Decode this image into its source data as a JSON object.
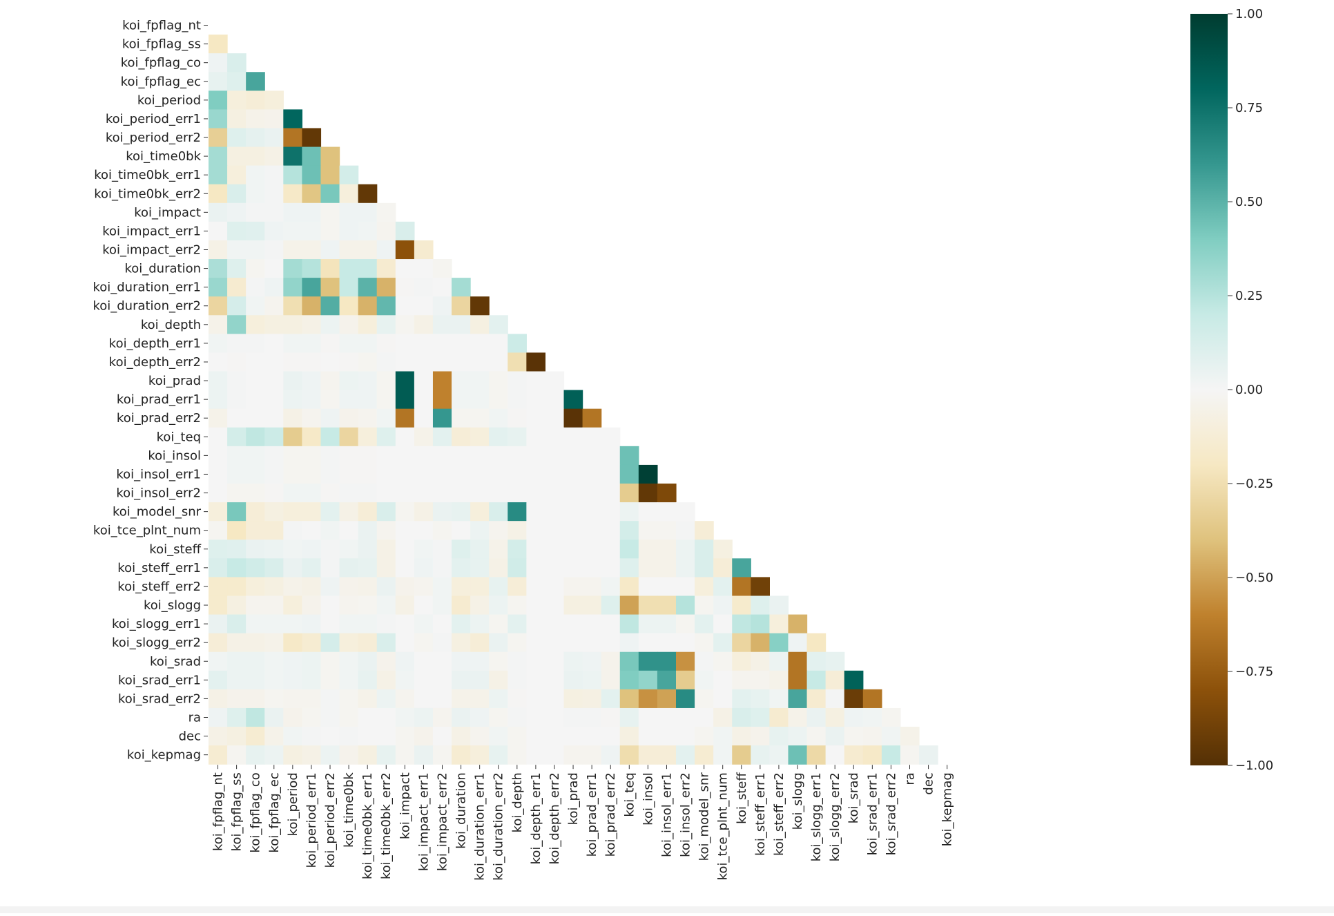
{
  "chart_data": {
    "type": "heatmap",
    "title": "",
    "xlabel": "",
    "ylabel": "",
    "mask": "upper-triangle-including-diagonal",
    "colormap": "BrBG",
    "colormap_stops": [
      "#543005",
      "#8c510a",
      "#bf812d",
      "#dfc27d",
      "#f6e8c3",
      "#f5f5f5",
      "#c7eae5",
      "#80cdc1",
      "#35978f",
      "#01665e",
      "#003c30"
    ],
    "vmin": -1.0,
    "vmax": 1.0,
    "colorbar_ticks": [
      1.0,
      0.75,
      0.5,
      0.25,
      0.0,
      -0.25,
      -0.5,
      -0.75,
      -1.0
    ],
    "colorbar_tick_labels": [
      "1.00",
      "0.75",
      "0.50",
      "0.25",
      "0.00",
      "−0.25",
      "−0.50",
      "−0.75",
      "−1.00"
    ],
    "variables": [
      "koi_fpflag_nt",
      "koi_fpflag_ss",
      "koi_fpflag_co",
      "koi_fpflag_ec",
      "koi_period",
      "koi_period_err1",
      "koi_period_err2",
      "koi_time0bk",
      "koi_time0bk_err1",
      "koi_time0bk_err2",
      "koi_impact",
      "koi_impact_err1",
      "koi_impact_err2",
      "koi_duration",
      "koi_duration_err1",
      "koi_duration_err2",
      "koi_depth",
      "koi_depth_err1",
      "koi_depth_err2",
      "koi_prad",
      "koi_prad_err1",
      "koi_prad_err2",
      "koi_teq",
      "koi_insol",
      "koi_insol_err1",
      "koi_insol_err2",
      "koi_model_snr",
      "koi_tce_plnt_num",
      "koi_steff",
      "koi_steff_err1",
      "koi_steff_err2",
      "koi_slogg",
      "koi_slogg_err1",
      "koi_slogg_err2",
      "koi_srad",
      "koi_srad_err1",
      "koi_srad_err2",
      "ra",
      "dec",
      "koi_kepmag"
    ],
    "values": [
      [],
      [
        -0.2
      ],
      [
        0.03,
        0.12
      ],
      [
        0.06,
        0.1,
        0.55
      ],
      [
        0.4,
        -0.1,
        -0.12,
        -0.1
      ],
      [
        0.33,
        -0.08,
        -0.05,
        -0.04,
        0.8
      ],
      [
        -0.33,
        0.1,
        0.07,
        0.05,
        -0.65,
        -0.95
      ],
      [
        0.3,
        -0.08,
        -0.08,
        -0.06,
        0.75,
        0.45,
        -0.4
      ],
      [
        0.3,
        -0.1,
        0.02,
        0.01,
        0.25,
        0.45,
        -0.4,
        0.15
      ],
      [
        -0.2,
        0.12,
        0.02,
        0.01,
        -0.18,
        -0.38,
        0.42,
        -0.1,
        -0.95
      ],
      [
        0.05,
        0.03,
        0.01,
        0.01,
        0.03,
        0.03,
        -0.02,
        0.03,
        0.03,
        -0.02
      ],
      [
        0.0,
        0.1,
        0.09,
        0.03,
        0.02,
        0.02,
        -0.02,
        0.03,
        0.02,
        -0.03,
        0.12
      ],
      [
        -0.06,
        0.02,
        0.02,
        0.01,
        -0.05,
        -0.05,
        0.03,
        -0.05,
        -0.05,
        0.03,
        -0.8,
        -0.15
      ],
      [
        0.28,
        0.1,
        -0.02,
        0.0,
        0.3,
        0.25,
        -0.22,
        0.2,
        0.2,
        -0.15,
        0.0,
        0.0,
        -0.02
      ],
      [
        0.33,
        -0.15,
        0.01,
        0.03,
        0.35,
        0.55,
        -0.4,
        0.2,
        0.5,
        -0.45,
        -0.01,
        0.01,
        0.0,
        0.3
      ],
      [
        -0.3,
        0.14,
        0.02,
        -0.03,
        -0.25,
        -0.45,
        0.52,
        -0.2,
        -0.45,
        0.48,
        0.0,
        0.0,
        0.03,
        -0.3,
        -0.95
      ],
      [
        -0.05,
        0.35,
        -0.1,
        -0.08,
        -0.08,
        -0.06,
        0.04,
        -0.04,
        -0.1,
        0.06,
        -0.02,
        -0.06,
        0.05,
        0.05,
        -0.08,
        0.08
      ],
      [
        0.02,
        0.01,
        0.01,
        0.0,
        0.02,
        0.02,
        -0.01,
        0.02,
        0.02,
        -0.01,
        0.0,
        0.0,
        0.0,
        0.0,
        0.0,
        0.0,
        0.18
      ],
      [
        0.0,
        -0.01,
        0.0,
        0.0,
        -0.01,
        -0.01,
        0.0,
        -0.01,
        -0.02,
        0.01,
        0.0,
        0.0,
        0.0,
        0.0,
        0.0,
        0.0,
        -0.25,
        -0.98
      ],
      [
        0.04,
        0.01,
        0.0,
        0.0,
        0.05,
        0.03,
        -0.03,
        0.04,
        0.03,
        -0.02,
        0.85,
        0.0,
        -0.6,
        0.02,
        0.02,
        -0.02,
        0.01,
        0.0,
        0.0
      ],
      [
        0.04,
        0.01,
        0.0,
        0.0,
        0.04,
        0.03,
        -0.02,
        0.03,
        0.03,
        -0.02,
        0.85,
        0.0,
        -0.6,
        0.02,
        0.02,
        -0.02,
        0.01,
        0.0,
        0.0,
        0.83
      ],
      [
        -0.05,
        0.0,
        0.0,
        0.0,
        -0.06,
        -0.03,
        0.03,
        -0.04,
        -0.03,
        0.02,
        -0.65,
        0.0,
        0.6,
        -0.02,
        -0.02,
        0.02,
        -0.01,
        0.0,
        0.0,
        -0.98,
        -0.65
      ],
      [
        0.0,
        0.15,
        0.22,
        0.18,
        -0.35,
        -0.18,
        0.2,
        -0.3,
        -0.1,
        0.1,
        0.0,
        -0.05,
        0.08,
        -0.12,
        -0.1,
        0.08,
        0.06,
        0.0,
        0.0,
        0.0,
        0.0,
        0.0
      ],
      [
        0.0,
        0.02,
        0.02,
        0.01,
        -0.02,
        -0.02,
        0.01,
        -0.01,
        -0.01,
        0.0,
        0.0,
        0.0,
        0.0,
        0.0,
        0.0,
        0.0,
        0.0,
        0.0,
        0.0,
        0.0,
        0.0,
        0.0,
        0.45
      ],
      [
        0.0,
        0.02,
        0.02,
        0.01,
        -0.02,
        -0.02,
        0.01,
        -0.01,
        -0.01,
        0.0,
        0.0,
        0.0,
        0.0,
        0.0,
        0.0,
        0.0,
        0.0,
        0.0,
        0.0,
        0.0,
        0.0,
        0.0,
        0.45,
        0.98
      ],
      [
        0.0,
        -0.02,
        -0.02,
        -0.01,
        0.02,
        0.02,
        -0.01,
        0.01,
        0.01,
        0.0,
        0.0,
        0.0,
        0.0,
        0.0,
        0.0,
        0.0,
        0.0,
        0.0,
        0.0,
        0.0,
        0.0,
        0.0,
        -0.35,
        -0.95,
        -0.85
      ],
      [
        -0.1,
        0.42,
        -0.12,
        -0.08,
        -0.1,
        -0.1,
        0.08,
        -0.06,
        -0.12,
        0.12,
        -0.02,
        -0.06,
        0.05,
        0.06,
        -0.1,
        0.12,
        0.65,
        0.0,
        0.0,
        0.0,
        0.0,
        0.0,
        0.04,
        0.0,
        0.0,
        0.0
      ],
      [
        -0.02,
        -0.2,
        -0.12,
        -0.12,
        0.01,
        0.0,
        0.02,
        0.0,
        0.05,
        -0.03,
        0.0,
        0.0,
        -0.02,
        0.0,
        0.04,
        -0.03,
        -0.06,
        0.0,
        0.0,
        0.0,
        0.0,
        0.0,
        0.15,
        -0.02,
        -0.02,
        0.01,
        -0.12
      ],
      [
        0.1,
        0.09,
        0.05,
        0.04,
        0.02,
        0.03,
        0.01,
        0.02,
        0.05,
        -0.06,
        0.0,
        0.02,
        0.01,
        0.1,
        0.06,
        -0.05,
        0.15,
        0.0,
        0.0,
        0.0,
        0.0,
        0.0,
        0.2,
        -0.05,
        -0.05,
        0.04,
        0.12,
        -0.08
      ],
      [
        0.12,
        0.2,
        0.16,
        0.12,
        0.05,
        0.08,
        0.01,
        0.07,
        0.06,
        -0.06,
        0.0,
        0.03,
        0.01,
        0.08,
        0.06,
        -0.06,
        0.16,
        0.0,
        0.0,
        0.0,
        0.0,
        0.0,
        0.1,
        -0.05,
        -0.05,
        0.04,
        0.12,
        -0.12,
        0.55
      ],
      [
        -0.16,
        -0.16,
        -0.1,
        -0.08,
        -0.05,
        -0.06,
        0.03,
        -0.04,
        -0.05,
        0.05,
        -0.04,
        -0.03,
        0.02,
        -0.1,
        -0.1,
        0.06,
        -0.12,
        0.0,
        0.0,
        -0.03,
        -0.03,
        0.02,
        -0.18,
        0.0,
        0.0,
        0.0,
        -0.1,
        0.08,
        -0.65,
        -0.9
      ],
      [
        -0.16,
        -0.08,
        -0.03,
        -0.03,
        -0.1,
        -0.04,
        0.0,
        -0.03,
        -0.02,
        0.02,
        -0.06,
        0.0,
        0.02,
        -0.15,
        -0.06,
        0.04,
        -0.02,
        0.0,
        0.0,
        -0.08,
        -0.08,
        0.1,
        -0.5,
        -0.25,
        -0.25,
        0.25,
        -0.02,
        0.03,
        -0.16,
        0.1,
        0.05
      ],
      [
        0.05,
        0.12,
        0.02,
        0.02,
        0.02,
        0.03,
        0.0,
        0.02,
        0.02,
        0.01,
        0.0,
        0.02,
        0.0,
        0.08,
        0.04,
        -0.02,
        0.08,
        0.0,
        0.0,
        0.0,
        0.0,
        0.0,
        0.22,
        0.04,
        0.04,
        -0.02,
        0.08,
        0.0,
        0.22,
        0.25,
        -0.1,
        -0.45
      ],
      [
        -0.12,
        -0.06,
        -0.06,
        -0.05,
        -0.18,
        -0.14,
        0.14,
        -0.1,
        -0.12,
        0.12,
        0.0,
        -0.02,
        0.01,
        -0.08,
        -0.12,
        0.05,
        -0.02,
        0.0,
        0.0,
        0.0,
        0.0,
        0.0,
        0.03,
        0.0,
        0.0,
        0.0,
        -0.02,
        0.08,
        -0.3,
        -0.45,
        0.38,
        0.03,
        -0.2
      ],
      [
        0.02,
        0.04,
        0.04,
        0.02,
        0.03,
        0.04,
        -0.02,
        0.02,
        0.05,
        -0.04,
        0.03,
        0.0,
        0.0,
        0.03,
        0.03,
        -0.02,
        0.01,
        0.0,
        0.0,
        0.04,
        0.03,
        -0.04,
        0.42,
        0.62,
        0.62,
        -0.55,
        0.01,
        -0.02,
        -0.1,
        -0.06,
        0.04,
        -0.65,
        0.08,
        0.06
      ],
      [
        0.08,
        0.04,
        0.04,
        0.02,
        0.03,
        0.04,
        -0.02,
        0.02,
        0.06,
        -0.06,
        0.02,
        0.0,
        0.0,
        0.05,
        0.05,
        -0.06,
        0.01,
        0.0,
        0.0,
        0.05,
        0.04,
        -0.04,
        0.4,
        0.35,
        0.55,
        -0.35,
        0.02,
        0.0,
        -0.03,
        -0.03,
        -0.05,
        -0.65,
        0.2,
        -0.12,
        0.82
      ],
      [
        -0.06,
        -0.04,
        -0.04,
        -0.02,
        -0.03,
        -0.03,
        0.01,
        -0.02,
        -0.05,
        0.04,
        -0.03,
        0.0,
        0.0,
        -0.05,
        -0.05,
        0.04,
        -0.01,
        0.0,
        0.0,
        -0.08,
        -0.07,
        0.08,
        -0.4,
        -0.55,
        -0.5,
        0.65,
        -0.02,
        0.0,
        0.08,
        0.06,
        0.02,
        0.55,
        -0.15,
        0.01,
        -0.92,
        -0.65
      ],
      [
        0.03,
        0.1,
        0.22,
        0.05,
        -0.04,
        -0.02,
        0.01,
        -0.02,
        0.0,
        0.0,
        0.02,
        0.04,
        -0.03,
        0.05,
        0.03,
        -0.02,
        0.01,
        0.0,
        0.0,
        0.01,
        0.01,
        -0.01,
        0.06,
        0.0,
        0.0,
        0.0,
        0.0,
        -0.06,
        0.12,
        0.1,
        -0.15,
        -0.05,
        0.05,
        -0.08,
        0.03,
        0.02,
        -0.02
      ],
      [
        -0.06,
        -0.08,
        -0.14,
        -0.05,
        0.02,
        0.01,
        0.0,
        0.01,
        0.0,
        0.0,
        -0.02,
        -0.04,
        0.0,
        -0.06,
        -0.03,
        0.02,
        -0.02,
        0.0,
        0.0,
        0.0,
        0.0,
        0.0,
        -0.08,
        0.0,
        0.0,
        0.0,
        -0.02,
        0.02,
        -0.06,
        -0.04,
        0.06,
        0.04,
        -0.02,
        0.05,
        -0.02,
        -0.03,
        0.02,
        -0.05
      ],
      [
        -0.14,
        -0.02,
        0.06,
        0.04,
        -0.08,
        -0.06,
        0.04,
        -0.04,
        -0.08,
        0.06,
        -0.02,
        0.05,
        -0.02,
        -0.14,
        -0.1,
        0.06,
        -0.02,
        0.0,
        0.0,
        -0.03,
        -0.03,
        0.03,
        -0.26,
        -0.12,
        -0.12,
        0.08,
        -0.14,
        0.02,
        -0.35,
        0.06,
        0.04,
        0.45,
        -0.28,
        0.0,
        -0.15,
        -0.18,
        0.2,
        -0.02,
        0.05
      ]
    ]
  }
}
